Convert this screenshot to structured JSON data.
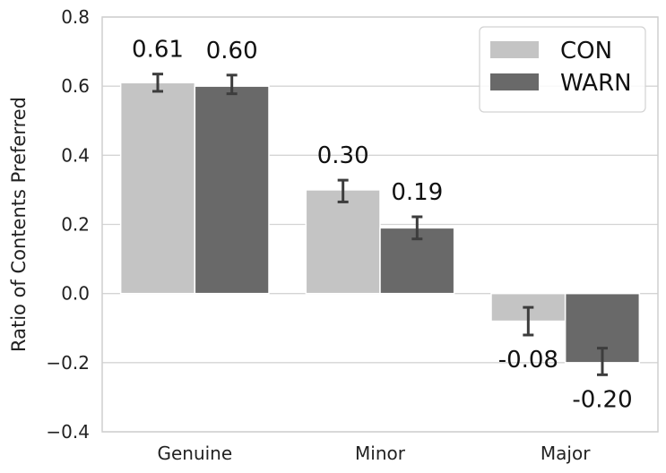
{
  "chart_data": {
    "type": "bar",
    "categories": [
      "Genuine",
      "Minor",
      "Major"
    ],
    "series": [
      {
        "name": "CON",
        "color": "#c4c4c4",
        "values": [
          0.61,
          0.3,
          -0.08
        ],
        "labels": [
          "0.61",
          "0.30",
          "-0.08"
        ],
        "error": [
          [
            0.585,
            0.635
          ],
          [
            0.265,
            0.328
          ],
          [
            -0.12,
            -0.04
          ]
        ]
      },
      {
        "name": "WARN",
        "color": "#696969",
        "values": [
          0.6,
          0.19,
          -0.2
        ],
        "labels": [
          "0.60",
          "0.19",
          "-0.20"
        ],
        "error": [
          [
            0.578,
            0.632
          ],
          [
            0.158,
            0.222
          ],
          [
            -0.235,
            -0.158
          ]
        ]
      }
    ],
    "title": "",
    "xlabel": "",
    "ylabel": "Ratio of Contents Preferred",
    "ylim": [
      -0.4,
      0.8
    ],
    "yticks": [
      -0.4,
      -0.2,
      0.0,
      0.2,
      0.4,
      0.6,
      0.8
    ],
    "ytick_labels": [
      "−0.4",
      "−0.2",
      "0.0",
      "0.2",
      "0.4",
      "0.6",
      "0.8"
    ],
    "grid": "horizontal",
    "legend": "top-right",
    "errorbar_color": "#3d3d3d"
  }
}
